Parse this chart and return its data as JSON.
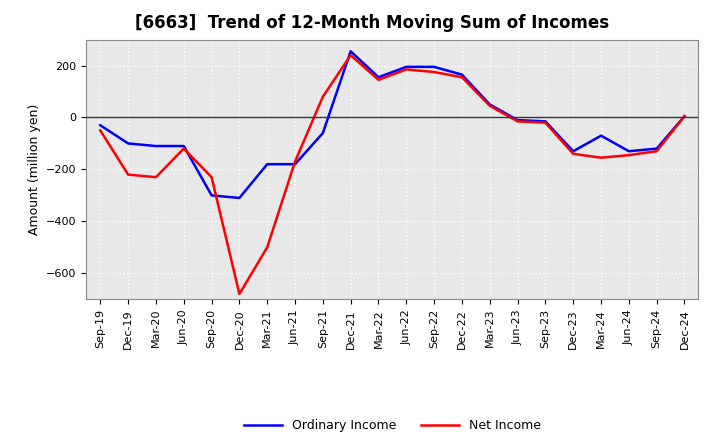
{
  "title": "[6663]  Trend of 12-Month Moving Sum of Incomes",
  "ylabel": "Amount (million yen)",
  "x_labels": [
    "Sep-19",
    "Dec-19",
    "Mar-20",
    "Jun-20",
    "Sep-20",
    "Dec-20",
    "Mar-21",
    "Jun-21",
    "Sep-21",
    "Dec-21",
    "Mar-22",
    "Jun-22",
    "Sep-22",
    "Dec-22",
    "Mar-23",
    "Jun-23",
    "Sep-23",
    "Dec-23",
    "Mar-24",
    "Jun-24",
    "Sep-24",
    "Dec-24"
  ],
  "ordinary_income": [
    -30,
    -100,
    -110,
    -110,
    -300,
    -310,
    -180,
    -180,
    -60,
    255,
    155,
    195,
    195,
    165,
    50,
    -10,
    -15,
    -130,
    -70,
    -130,
    -120,
    5
  ],
  "net_income": [
    -50,
    -220,
    -230,
    -120,
    -230,
    -680,
    -500,
    -170,
    80,
    240,
    145,
    185,
    175,
    155,
    45,
    -15,
    -20,
    -140,
    -155,
    -145,
    -130,
    5
  ],
  "ordinary_color": "#0000ff",
  "net_color": "#ff0000",
  "ylim": [
    -700,
    300
  ],
  "yticks": [
    -600,
    -400,
    -200,
    0,
    200
  ],
  "bg_color": "#ffffff",
  "plot_bg_color": "#e8e8e8",
  "grid_color": "#ffffff",
  "title_fontsize": 12,
  "label_fontsize": 9,
  "tick_fontsize": 8,
  "line_width": 1.8
}
